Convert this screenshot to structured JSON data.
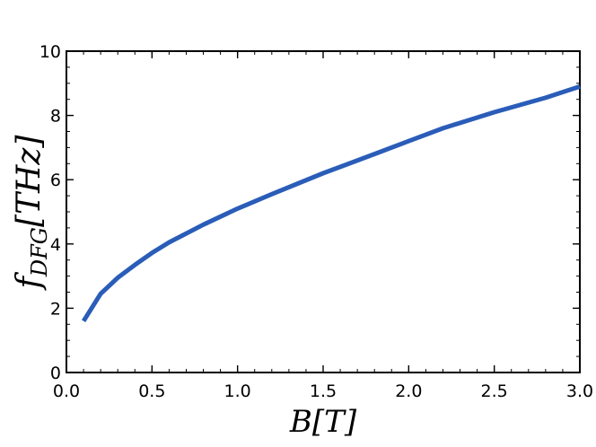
{
  "chart_data": {
    "type": "line",
    "title": "",
    "xlabel": "B[T]",
    "ylabel_main": "f",
    "ylabel_sub": "DFG",
    "ylabel_rest": "[THz]",
    "xlim": [
      0.0,
      3.0
    ],
    "ylim": [
      0,
      10
    ],
    "x_ticks": [
      "0.0",
      "0.5",
      "1.0",
      "1.5",
      "2.0",
      "2.5",
      "3.0"
    ],
    "y_ticks": [
      "0",
      "2",
      "4",
      "6",
      "8",
      "10"
    ],
    "grid": false,
    "legend": "none",
    "series": [
      {
        "color": "#2a5db8",
        "x": [
          0.1,
          0.2,
          0.3,
          0.4,
          0.5,
          0.6,
          0.8,
          1.0,
          1.2,
          1.5,
          1.8,
          2.0,
          2.2,
          2.5,
          2.8,
          3.0
        ],
        "y": [
          1.6,
          2.45,
          2.95,
          3.35,
          3.72,
          4.05,
          4.6,
          5.1,
          5.55,
          6.2,
          6.8,
          7.2,
          7.6,
          8.1,
          8.55,
          8.9
        ]
      }
    ]
  }
}
